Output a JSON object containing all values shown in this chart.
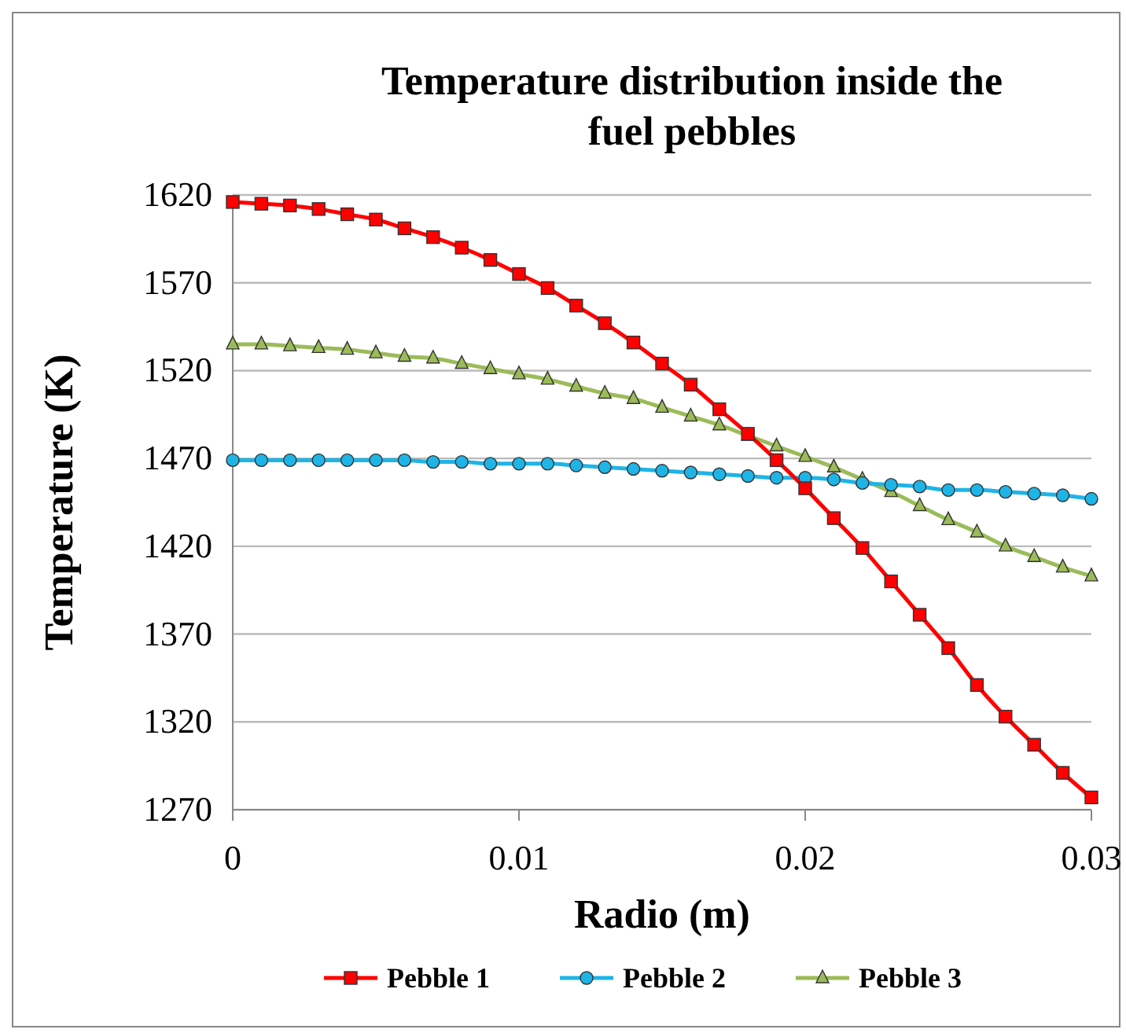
{
  "chart_data": {
    "type": "line",
    "title": "Temperature distribution inside the fuel pebbles",
    "xlabel": "Radio (m)",
    "ylabel": "Temperature (K)",
    "x": [
      0,
      0.001,
      0.002,
      0.003,
      0.004,
      0.005,
      0.006,
      0.007,
      0.008,
      0.009,
      0.01,
      0.011,
      0.012,
      0.013,
      0.014,
      0.015,
      0.016,
      0.017,
      0.018,
      0.019,
      0.02,
      0.021,
      0.022,
      0.023,
      0.024,
      0.025,
      0.026,
      0.027,
      0.028,
      0.029,
      0.03
    ],
    "series": [
      {
        "name": "Pebble 1",
        "color": "#ff0000",
        "marker": "square",
        "values": [
          1616,
          1615,
          1614,
          1612,
          1609,
          1606,
          1601,
          1596,
          1590,
          1583,
          1575,
          1567,
          1557,
          1547,
          1536,
          1524,
          1512,
          1498,
          1484,
          1469,
          1453,
          1436,
          1419,
          1400,
          1381,
          1362,
          1341,
          1323,
          1307,
          1291,
          1277
        ]
      },
      {
        "name": "Pebble 2",
        "color": "#1fb4e6",
        "marker": "circle",
        "values": [
          1469,
          1469,
          1469,
          1469,
          1469,
          1469,
          1469,
          1468,
          1468,
          1467,
          1467,
          1467,
          1466,
          1465,
          1464,
          1463,
          1462,
          1461,
          1460,
          1459,
          1459,
          1458,
          1456,
          1455,
          1454,
          1452,
          1452,
          1451,
          1450,
          1449,
          1447
        ]
      },
      {
        "name": "Pebble 3",
        "color": "#9bbb59",
        "marker": "triangle",
        "values": [
          1535,
          1535,
          1534,
          1533,
          1532,
          1530,
          1528,
          1527,
          1524,
          1521,
          1518,
          1515,
          1511,
          1507,
          1504,
          1499,
          1494,
          1489,
          1483,
          1477,
          1471,
          1465,
          1458,
          1451,
          1443,
          1435,
          1428,
          1420,
          1414,
          1408,
          1403
        ]
      }
    ],
    "xlim": [
      0,
      0.03
    ],
    "xticks": [
      0,
      0.01,
      0.02,
      0.03
    ],
    "ylim": [
      1270,
      1620
    ],
    "yticks": [
      1270,
      1320,
      1370,
      1420,
      1470,
      1520,
      1570,
      1620
    ],
    "grid": "y",
    "legend": "bottom",
    "line_style": "solid"
  }
}
